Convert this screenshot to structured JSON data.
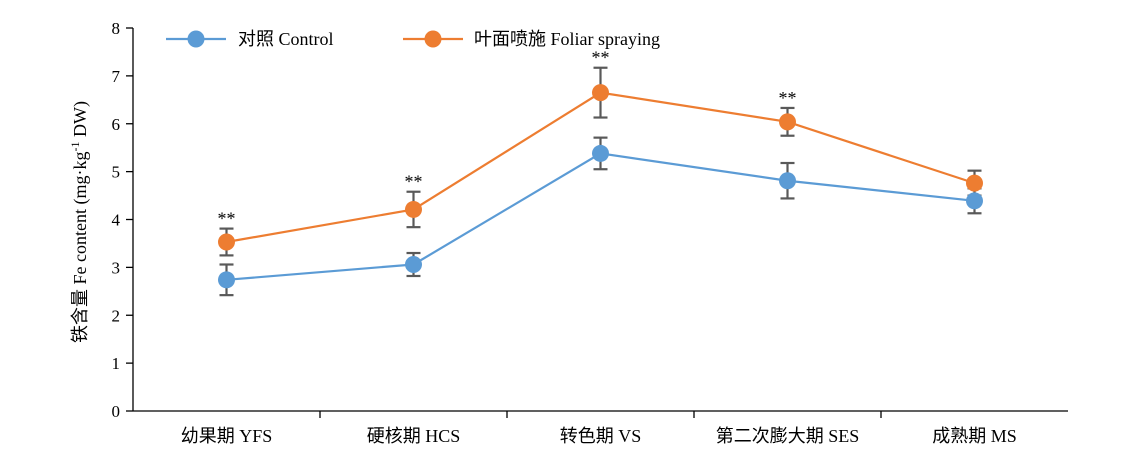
{
  "chart_data": {
    "type": "line",
    "categories": [
      "幼果期 YFS",
      "硬核期 HCS",
      "转色期 VS",
      "第二次膨大期 SES",
      "成熟期 MS"
    ],
    "series": [
      {
        "name": "对照 Control",
        "color": "#5b9bd5",
        "values": [
          2.74,
          3.06,
          5.38,
          4.81,
          4.39
        ],
        "errors": [
          0.32,
          0.24,
          0.33,
          0.37,
          0.26
        ]
      },
      {
        "name": "叶面喷施 Foliar spraying",
        "color": "#ed7d31",
        "values": [
          3.53,
          4.21,
          6.65,
          6.04,
          4.76
        ],
        "errors": [
          0.28,
          0.37,
          0.52,
          0.29,
          0.26
        ]
      }
    ],
    "ylabel_main": "铁含量 Fe content (mg·kg",
    "ylabel_sup": "-1",
    "ylabel_tail": " DW)",
    "ylim": [
      0,
      8
    ],
    "yticks": [
      "0",
      "1",
      "2",
      "3",
      "4",
      "5",
      "6",
      "7",
      "8"
    ],
    "significance": [
      "**",
      "**",
      "**",
      "**",
      ""
    ],
    "legend_position": "top",
    "grid": false,
    "error_bar_color": "#595959"
  }
}
